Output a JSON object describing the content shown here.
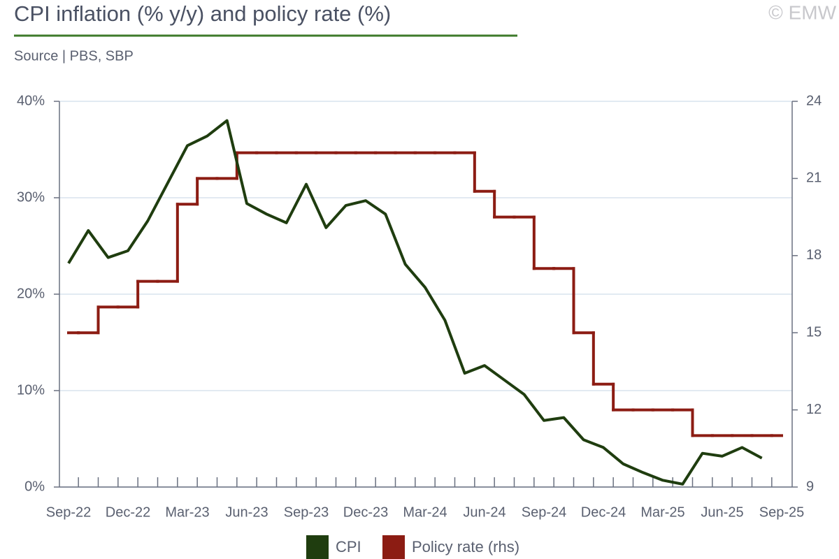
{
  "chart_data": {
    "type": "line",
    "title": "CPI inflation (% y/y) and policy rate (%)",
    "subtitle": "Source | PBS, SBP",
    "watermark": "© EMW",
    "categories": [
      "Sep-22",
      null,
      null,
      "Dec-22",
      null,
      null,
      "Mar-23",
      null,
      null,
      "Jun-23",
      null,
      null,
      "Sep-23",
      null,
      null,
      "Dec-23",
      null,
      null,
      "Mar-24",
      null,
      null,
      "Jun-24",
      null,
      null,
      "Sep-24",
      null,
      null,
      "Dec-24",
      null,
      null,
      "Mar-25",
      null,
      null,
      "Jun-25",
      null,
      null,
      "Sep-25"
    ],
    "series": [
      {
        "name": "CPI",
        "color": "#1f3d0f",
        "values": [
          23.2,
          26.6,
          23.8,
          24.5,
          27.6,
          31.5,
          35.4,
          36.4,
          38.0,
          29.4,
          28.3,
          27.4,
          31.4,
          26.9,
          29.2,
          29.7,
          28.3,
          23.1,
          20.7,
          17.3,
          11.8,
          12.6,
          11.1,
          9.6,
          6.9,
          7.2,
          4.9,
          4.1,
          2.4,
          1.5,
          0.7,
          0.3,
          3.5,
          3.2,
          4.1,
          3.0,
          null
        ]
      },
      {
        "name": "Policy rate (rhs)",
        "color": "#8c1c13",
        "axis": "y2",
        "drawstyle": "steps-mid",
        "values": [
          15,
          15,
          16,
          16,
          17,
          17,
          20,
          21,
          21,
          22,
          22,
          22,
          22,
          22,
          22,
          22,
          22,
          22,
          22,
          22,
          22,
          20.5,
          19.5,
          19.5,
          17.5,
          17.5,
          15,
          13,
          12,
          12,
          12,
          12,
          11,
          11,
          11,
          11,
          11
        ]
      }
    ],
    "ylim": [
      0,
      40
    ],
    "yticks": [
      {
        "value": 0,
        "label": "0%"
      },
      {
        "value": 10,
        "label": "10%"
      },
      {
        "value": 20,
        "label": "20%"
      },
      {
        "value": 30,
        "label": "30%"
      },
      {
        "value": 40,
        "label": "40%"
      }
    ],
    "y2lim": [
      9,
      24
    ],
    "y2ticks": [
      9,
      12,
      15,
      18,
      21,
      24
    ],
    "grid": true,
    "legend": "bottom"
  }
}
